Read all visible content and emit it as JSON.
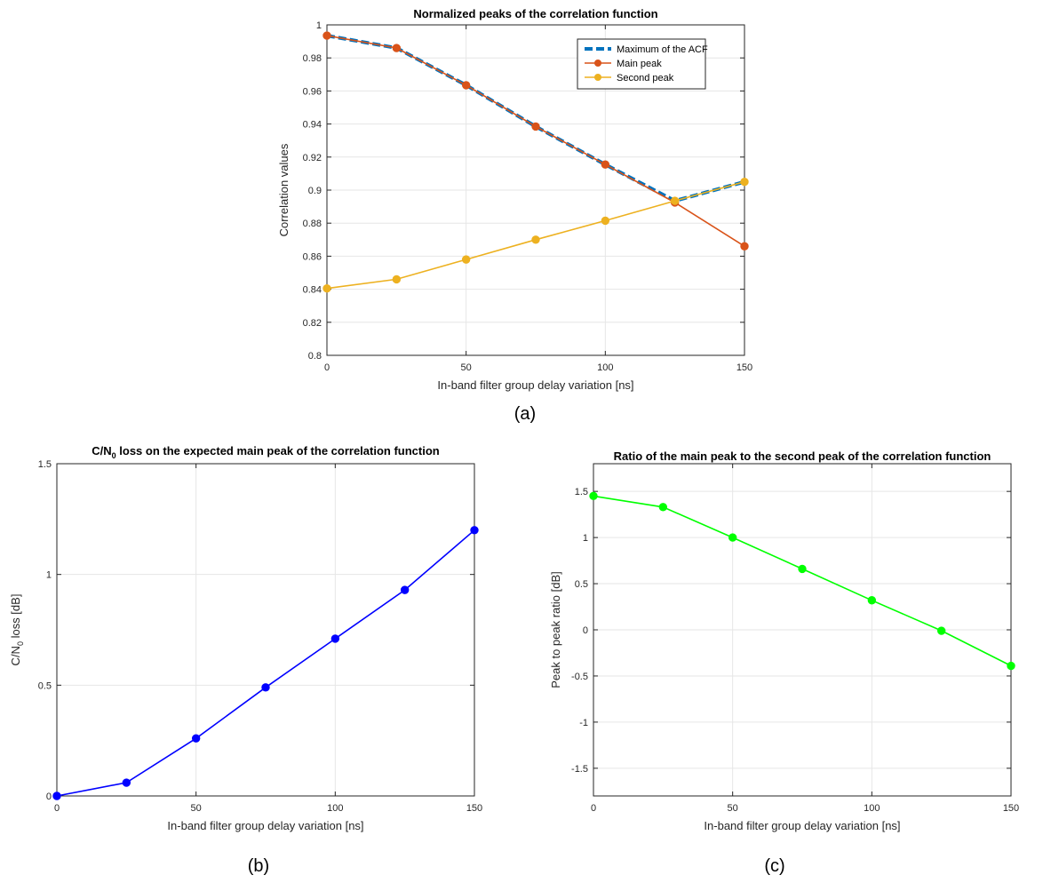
{
  "chart_data": [
    {
      "type": "line",
      "caption": "(a)",
      "title": "Normalized peaks of the correlation function",
      "xlabel": "In-band filter group delay variation [ns]",
      "ylabel": "Correlation values",
      "xlim": [
        0,
        150
      ],
      "ylim": [
        0.8,
        1
      ],
      "xticks": [
        0,
        50,
        100,
        150
      ],
      "yticks": [
        0.8,
        0.82,
        0.84,
        0.86,
        0.88,
        0.9,
        0.92,
        0.94,
        0.96,
        0.98,
        1
      ],
      "grid": true,
      "legend_position": "top-right",
      "x": [
        0,
        25,
        50,
        75,
        100,
        125,
        150
      ],
      "series": [
        {
          "name": "Maximum of the ACF",
          "values": [
            0.9935,
            0.986,
            0.9635,
            0.9385,
            0.9155,
            0.8935,
            0.905
          ],
          "color": "#0072BD",
          "style": "dashed",
          "markers": false
        },
        {
          "name": "Main peak",
          "values": [
            0.9935,
            0.986,
            0.9635,
            0.9385,
            0.9155,
            0.8925,
            0.866
          ],
          "color": "#D95319",
          "style": "solid",
          "markers": true
        },
        {
          "name": "Second peak",
          "values": [
            0.8405,
            0.846,
            0.858,
            0.87,
            0.8815,
            0.8935,
            0.905
          ],
          "color": "#EDB120",
          "style": "solid",
          "markers": true
        }
      ]
    },
    {
      "type": "line",
      "caption": "(b)",
      "title": "C/N₀ loss on the expected main peak of the correlation function",
      "title_parts": [
        "C/N",
        "0",
        " loss on the expected main peak of the correlation function"
      ],
      "xlabel": "In-band filter group delay variation [ns]",
      "ylabel": "C/N₀ loss [dB]",
      "ylabel_parts": [
        "C/N",
        "0",
        " loss [dB]"
      ],
      "xlim": [
        0,
        150
      ],
      "ylim": [
        0,
        1.5
      ],
      "xticks": [
        0,
        50,
        100,
        150
      ],
      "yticks": [
        0,
        0.5,
        1,
        1.5
      ],
      "grid": true,
      "x": [
        0,
        25,
        50,
        75,
        100,
        125,
        150
      ],
      "series": [
        {
          "values": [
            0.0,
            0.06,
            0.26,
            0.49,
            0.71,
            0.93,
            1.2
          ],
          "color": "#0000FF",
          "style": "solid",
          "markers": true
        }
      ]
    },
    {
      "type": "line",
      "caption": "(c)",
      "title": "Ratio of the main peak to the second peak of the correlation function",
      "xlabel": "In-band filter group delay variation [ns]",
      "ylabel": "Peak to peak ratio [dB]",
      "xlim": [
        0,
        150
      ],
      "ylim": [
        -1.8,
        1.8
      ],
      "xticks": [
        0,
        50,
        100,
        150
      ],
      "yticks": [
        -1.5,
        -1,
        -0.5,
        0,
        0.5,
        1,
        1.5
      ],
      "grid": true,
      "x": [
        0,
        25,
        50,
        75,
        100,
        125,
        150
      ],
      "series": [
        {
          "values": [
            1.45,
            1.33,
            1.0,
            0.66,
            0.32,
            -0.01,
            -0.39
          ],
          "color": "#00FF00",
          "style": "solid",
          "markers": true
        }
      ]
    }
  ]
}
